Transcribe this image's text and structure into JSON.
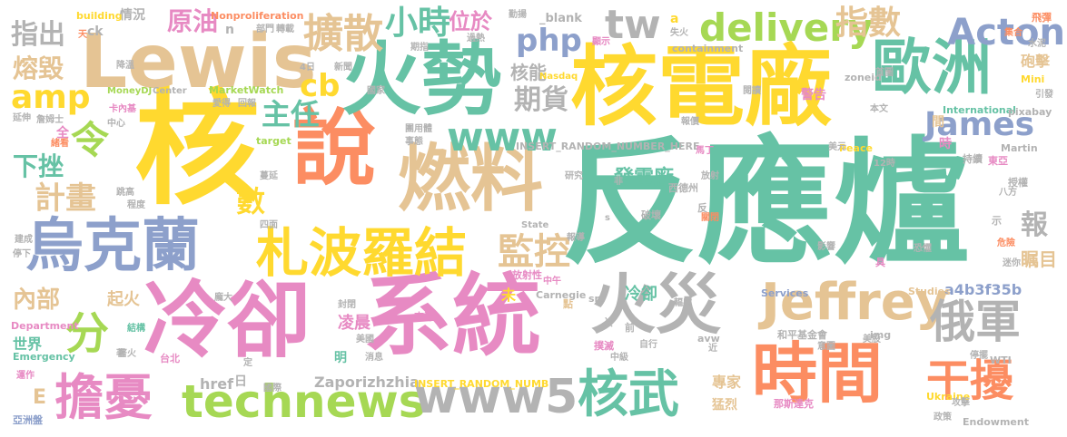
{
  "cloud": {
    "w1": "反應爐",
    "w2": "核",
    "w3": "核電廠",
    "w4": "說",
    "w5": "火勢",
    "w6": "冷卻",
    "w7": "系統",
    "w8": "燃料",
    "w9": "Lewis",
    "w10": "烏克蘭",
    "w11": "札波羅結",
    "w12": "時間",
    "w13": "火災",
    "w14": "歐洲",
    "w15": "Jeffrey",
    "w16": "technews",
    "w17": "www5",
    "w18": "擔憂",
    "w19": "核武",
    "w20": "俄軍",
    "w21": "干擾",
    "w22": "delivery",
    "w23": "www",
    "w24": "tw",
    "w25": "Acton",
    "w26": "James",
    "w27": "擴散",
    "w28": "小時",
    "w29": "指數",
    "w30": "監控",
    "w31": "分",
    "w32": "amp",
    "w33": "php",
    "w34": "原油",
    "w35": "指出",
    "w36": "熔毀",
    "w37": "計畫",
    "w38": "下挫",
    "w39": "令",
    "w40": "主任",
    "w41": "cb",
    "w42": "位於",
    "w43": "期貨",
    "w44": "核能",
    "w45": "發電廠",
    "w46": "數",
    "w47": "內部",
    "w48": "報",
    "w49": "瞩目",
    "w50": "a4b3f35b",
    "w51": "Zaporizhzhia",
    "w52": "href",
    "w53": "E",
    "w54": "起火",
    "w55": "世界",
    "w56": "凌晨",
    "w57": "專家",
    "w58": "猛烈",
    "w59": "砲擊",
    "w60": "冷卻",
    "w61": "building",
    "w62": "情況",
    "w63": "Nonproliferation",
    "w64": "_blank",
    "w65": "a",
    "w66": "飛彈",
    "w67": "MoneyDJ",
    "w68": "Center",
    "w69": "MarketWatch",
    "w70": "INSERT_RANDOM_NUMBER_HERE",
    "w71": "INSERT_RANDOM_NUMB",
    "w72": "Emergency",
    "w73": "Department",
    "w74": "Carnegie",
    "w75": "Services",
    "w76": "Studies",
    "w77": "Endowment",
    "w78": "Ukraine",
    "w79": "International",
    "w80": "pixabay",
    "w81": "Peace",
    "w82": "Martin",
    "w83": "State",
    "w84": "target",
    "w85": "zoneid",
    "w86": "Nasdaq",
    "w87": "containment",
    "w88": "img",
    "w89": "avw",
    "w90": "src",
    "w91": "WTI",
    "w92": "Mini",
    "w93": "亞洲盤",
    "w94": "台北",
    "w95": "國際",
    "w96": "美國",
    "w97": "來源",
    "w98": "放射性",
    "w99": "中午",
    "w100": "和平基金會",
    "w101": "西德州",
    "w102": "東亞",
    "w103": "授權",
    "w104": "持續",
    "w105": "12時",
    "w106": "美元",
    "w107": "卡內基",
    "w108": "詹姆士",
    "w109": "降溫",
    "w110": "延伸",
    "w111": "程度",
    "w112": "跳高",
    "w113": "四面",
    "w114": "蔓延",
    "w115": "破壞",
    "w116": "輻射",
    "w117": "危險",
    "w118": "恐懼",
    "w119": "影響",
    "w120": "迷你",
    "w121": "八方",
    "w122": "警告",
    "w123": "報價",
    "w124": "閱讀",
    "w125": "失火",
    "w126": "勤揚",
    "w127": "過熱",
    "w128": "期指",
    "w129": "新聞",
    "w130": "國家",
    "w131": "部門",
    "w132": "轉載",
    "w133": "首圖",
    "w134": "本文",
    "w135": "引發",
    "w136": "水泥",
    "w137": "集合",
    "w138": "顯示",
    "w139": "團用體",
    "w140": "事態",
    "w141": "研究",
    "w142": "報導",
    "w143": "放射",
    "w144": "關閉",
    "w145": "撲滅",
    "w146": "自行",
    "w147": "中級",
    "w148": "封閉",
    "w149": "消息",
    "w150": "著火",
    "w151": "結構",
    "w152": "運作",
    "w153": "停下",
    "w154": "建成",
    "w155": "龐大",
    "w156": "那斯達克",
    "w157": "攻擊",
    "w158": "政策",
    "w159": "停擺",
    "w160": "美股",
    "w161": "意圖",
    "w162": "近",
    "w163": "馬丁",
    "w164": "gyc",
    "w165": "非",
    "w166": "冷",
    "w167": "未",
    "w168": "點",
    "w169": "前",
    "w170": "明",
    "w171": "日",
    "w172": "定",
    "w173": "時",
    "w174": "間",
    "w175": "具",
    "w176": "示",
    "w177": "反",
    "w178": "n",
    "w179": "ck",
    "w180": "天",
    "w181": "中心",
    "w182": "愛得",
    "w183": "回報",
    "w184": "4日",
    "w185": "全",
    "w186": "s",
    "w187": "緒看",
    "w188": "著"
  }
}
